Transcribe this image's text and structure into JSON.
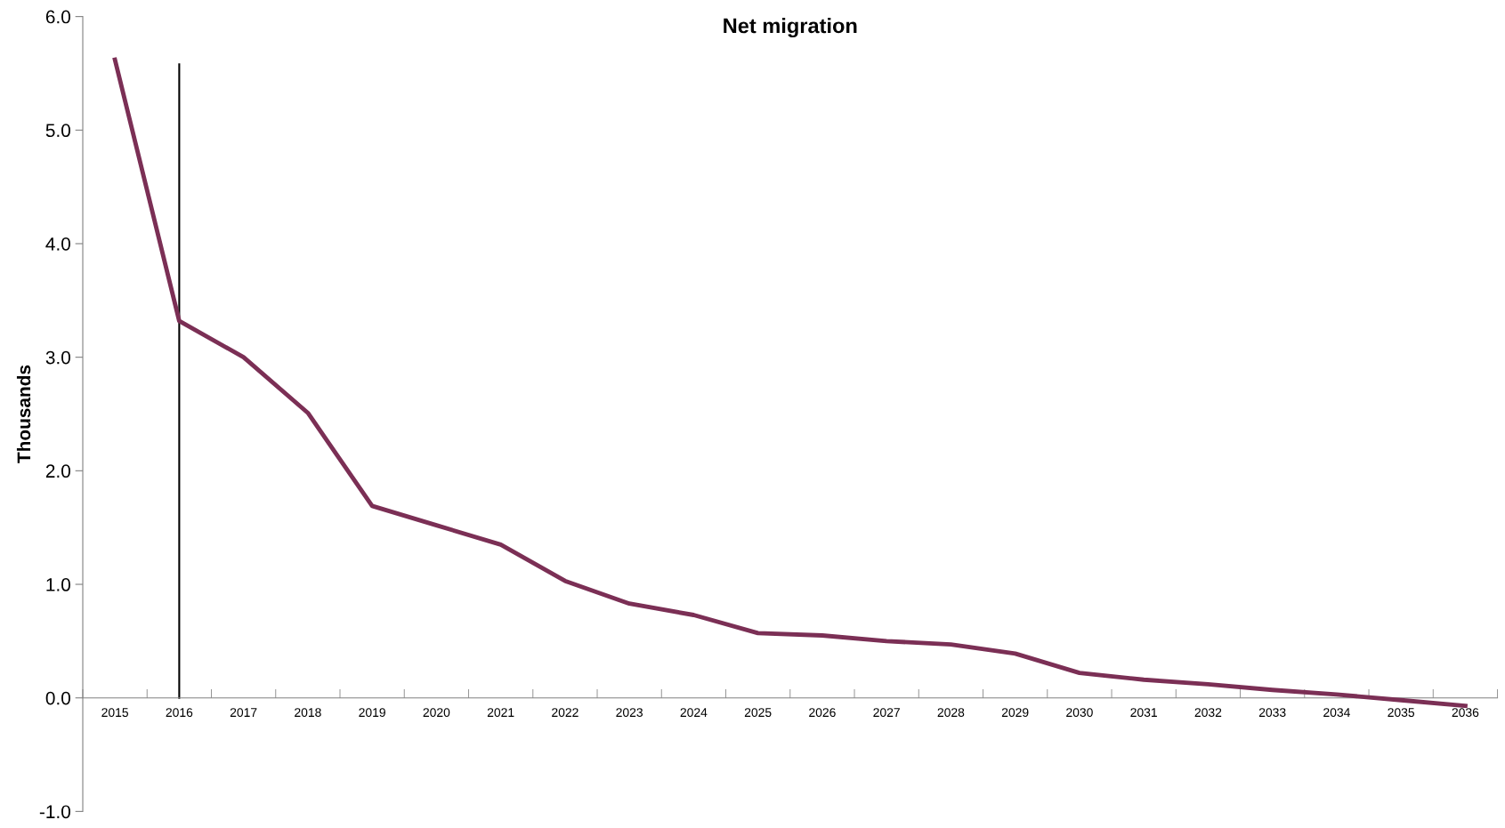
{
  "chart_data": {
    "type": "line",
    "title": "Net migration",
    "ylabel": "Thousands",
    "categories": [
      "2015",
      "2016",
      "2017",
      "2018",
      "2019",
      "2020",
      "2021",
      "2022",
      "2023",
      "2024",
      "2025",
      "2026",
      "2027",
      "2028",
      "2029",
      "2030",
      "2031",
      "2032",
      "2033",
      "2034",
      "2035",
      "2036"
    ],
    "series": [
      {
        "color": "#7b2f55",
        "values": [
          5.62,
          3.32,
          3.0,
          2.51,
          1.69,
          1.52,
          1.35,
          1.03,
          0.83,
          0.73,
          0.57,
          0.55,
          0.5,
          0.47,
          0.39,
          0.22,
          0.16,
          0.12,
          0.07,
          0.03,
          -0.02,
          -0.07
        ]
      }
    ],
    "ylim": [
      -1.0,
      6.0
    ],
    "yticks": [
      {
        "value": -1,
        "label": "-1.0"
      },
      {
        "value": 0,
        "label": "0.0"
      },
      {
        "value": 1,
        "label": "1.0"
      },
      {
        "value": 2,
        "label": "2.0"
      },
      {
        "value": 3,
        "label": "3.0"
      },
      {
        "value": 4,
        "label": "4.0"
      },
      {
        "value": 5,
        "label": "5.0"
      },
      {
        "value": 6,
        "label": "6.0"
      }
    ],
    "ref_lines": [
      {
        "axis": "x",
        "value": "2016",
        "color": "#000000"
      }
    ],
    "grid": false,
    "legend": false,
    "marker": "none",
    "line_style": "solid"
  }
}
